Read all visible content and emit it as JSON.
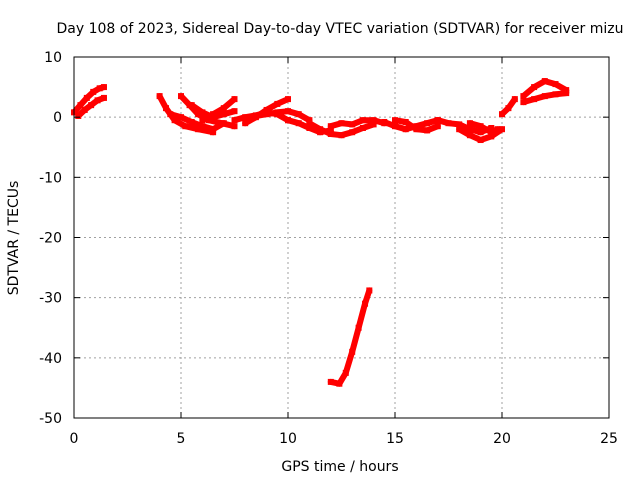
{
  "chart_data": {
    "type": "scatter",
    "title": "Day 108 of 2023, Sidereal Day-to-day VTEC variation (SDTVAR) for receiver mizu",
    "xlabel": "GPS time / hours",
    "ylabel": "SDTVAR / TECUs",
    "xlim": [
      0,
      25
    ],
    "ylim": [
      -50,
      10
    ],
    "xticks": [
      0,
      5,
      10,
      15,
      20,
      25
    ],
    "yticks": [
      -50,
      -40,
      -30,
      -20,
      -10,
      0,
      10
    ],
    "grid": true,
    "series": [
      {
        "name": "SDTVAR",
        "color": "#ff0000",
        "tracks": [
          [
            [
              0.0,
              0.8
            ],
            [
              0.3,
              2.0
            ],
            [
              0.6,
              3.2
            ],
            [
              0.9,
              4.2
            ],
            [
              1.2,
              4.8
            ],
            [
              1.4,
              5.0
            ]
          ],
          [
            [
              0.2,
              0.2
            ],
            [
              0.5,
              1.2
            ],
            [
              0.8,
              2.0
            ],
            [
              1.1,
              2.8
            ],
            [
              1.4,
              3.2
            ]
          ],
          [
            [
              4.0,
              3.5
            ],
            [
              4.3,
              1.5
            ],
            [
              4.7,
              -0.5
            ],
            [
              5.2,
              -1.5
            ],
            [
              5.8,
              -2.0
            ],
            [
              6.5,
              -2.5
            ]
          ],
          [
            [
              4.5,
              0.5
            ],
            [
              5.0,
              0.0
            ],
            [
              5.5,
              -0.8
            ],
            [
              6.0,
              -1.5
            ],
            [
              6.5,
              -2.0
            ],
            [
              7.0,
              -1.0
            ]
          ],
          [
            [
              5.0,
              3.5
            ],
            [
              5.4,
              2.0
            ],
            [
              5.8,
              0.5
            ],
            [
              6.3,
              -0.5
            ],
            [
              6.9,
              -1.0
            ],
            [
              7.5,
              -1.5
            ]
          ],
          [
            [
              5.5,
              2.0
            ],
            [
              6.0,
              0.8
            ],
            [
              6.5,
              0.0
            ],
            [
              7.0,
              0.5
            ],
            [
              7.5,
              1.0
            ]
          ],
          [
            [
              6.0,
              -0.5
            ],
            [
              6.5,
              0.5
            ],
            [
              7.0,
              1.5
            ],
            [
              7.5,
              3.0
            ]
          ],
          [
            [
              7.5,
              -0.5
            ],
            [
              8.0,
              0.0
            ],
            [
              8.5,
              0.3
            ],
            [
              9.0,
              0.8
            ],
            [
              9.5,
              0.5
            ],
            [
              10.0,
              -0.5
            ]
          ],
          [
            [
              8.0,
              -1.0
            ],
            [
              8.5,
              0.0
            ],
            [
              9.0,
              1.2
            ],
            [
              9.5,
              2.2
            ],
            [
              10.0,
              3.0
            ]
          ],
          [
            [
              8.5,
              0.2
            ],
            [
              9.0,
              0.5
            ],
            [
              9.5,
              0.8
            ],
            [
              10.0,
              1.0
            ],
            [
              10.5,
              0.5
            ],
            [
              11.0,
              -0.5
            ]
          ],
          [
            [
              10.0,
              -0.5
            ],
            [
              10.5,
              -1.0
            ],
            [
              11.0,
              -1.8
            ],
            [
              11.5,
              -2.5
            ],
            [
              12.0,
              -2.2
            ]
          ],
          [
            [
              11.0,
              -1.0
            ],
            [
              11.5,
              -2.0
            ],
            [
              12.0,
              -2.8
            ],
            [
              12.5,
              -3.0
            ],
            [
              13.0,
              -2.5
            ],
            [
              13.5,
              -1.8
            ],
            [
              14.0,
              -1.2
            ]
          ],
          [
            [
              12.0,
              -1.5
            ],
            [
              12.5,
              -1.0
            ],
            [
              13.0,
              -1.2
            ],
            [
              13.5,
              -0.5
            ],
            [
              14.0,
              -0.5
            ],
            [
              14.5,
              -1.0
            ]
          ],
          [
            [
              14.5,
              -0.8
            ],
            [
              15.0,
              -1.5
            ],
            [
              15.5,
              -2.0
            ],
            [
              16.0,
              -1.5
            ],
            [
              16.5,
              -1.0
            ],
            [
              17.0,
              -0.5
            ]
          ],
          [
            [
              15.0,
              -0.5
            ],
            [
              15.5,
              -0.8
            ],
            [
              16.0,
              -2.0
            ],
            [
              16.5,
              -2.2
            ],
            [
              17.0,
              -1.5
            ]
          ],
          [
            [
              17.0,
              -0.5
            ],
            [
              17.5,
              -1.0
            ],
            [
              18.0,
              -1.2
            ],
            [
              18.5,
              -2.0
            ],
            [
              19.0,
              -2.5
            ],
            [
              19.5,
              -1.8
            ]
          ],
          [
            [
              18.0,
              -2.0
            ],
            [
              18.5,
              -3.0
            ],
            [
              19.0,
              -3.8
            ],
            [
              19.5,
              -3.2
            ],
            [
              20.0,
              -2.0
            ]
          ],
          [
            [
              18.5,
              -1.0
            ],
            [
              19.0,
              -1.5
            ],
            [
              19.5,
              -2.5
            ],
            [
              19.8,
              -2.0
            ]
          ],
          [
            [
              20.0,
              0.5
            ],
            [
              20.3,
              1.5
            ],
            [
              20.6,
              3.0
            ]
          ],
          [
            [
              21.0,
              3.5
            ],
            [
              21.5,
              5.0
            ],
            [
              22.0,
              6.0
            ],
            [
              22.5,
              5.5
            ],
            [
              23.0,
              4.5
            ]
          ],
          [
            [
              21.0,
              2.5
            ],
            [
              21.5,
              3.0
            ],
            [
              22.0,
              3.5
            ],
            [
              22.5,
              3.8
            ],
            [
              23.0,
              4.0
            ]
          ],
          [
            [
              12.0,
              -44.0
            ],
            [
              12.4,
              -44.3
            ],
            [
              12.7,
              -42.5
            ],
            [
              13.0,
              -39.0
            ],
            [
              13.3,
              -35.0
            ],
            [
              13.6,
              -31.0
            ],
            [
              13.8,
              -28.8
            ]
          ]
        ]
      }
    ]
  }
}
